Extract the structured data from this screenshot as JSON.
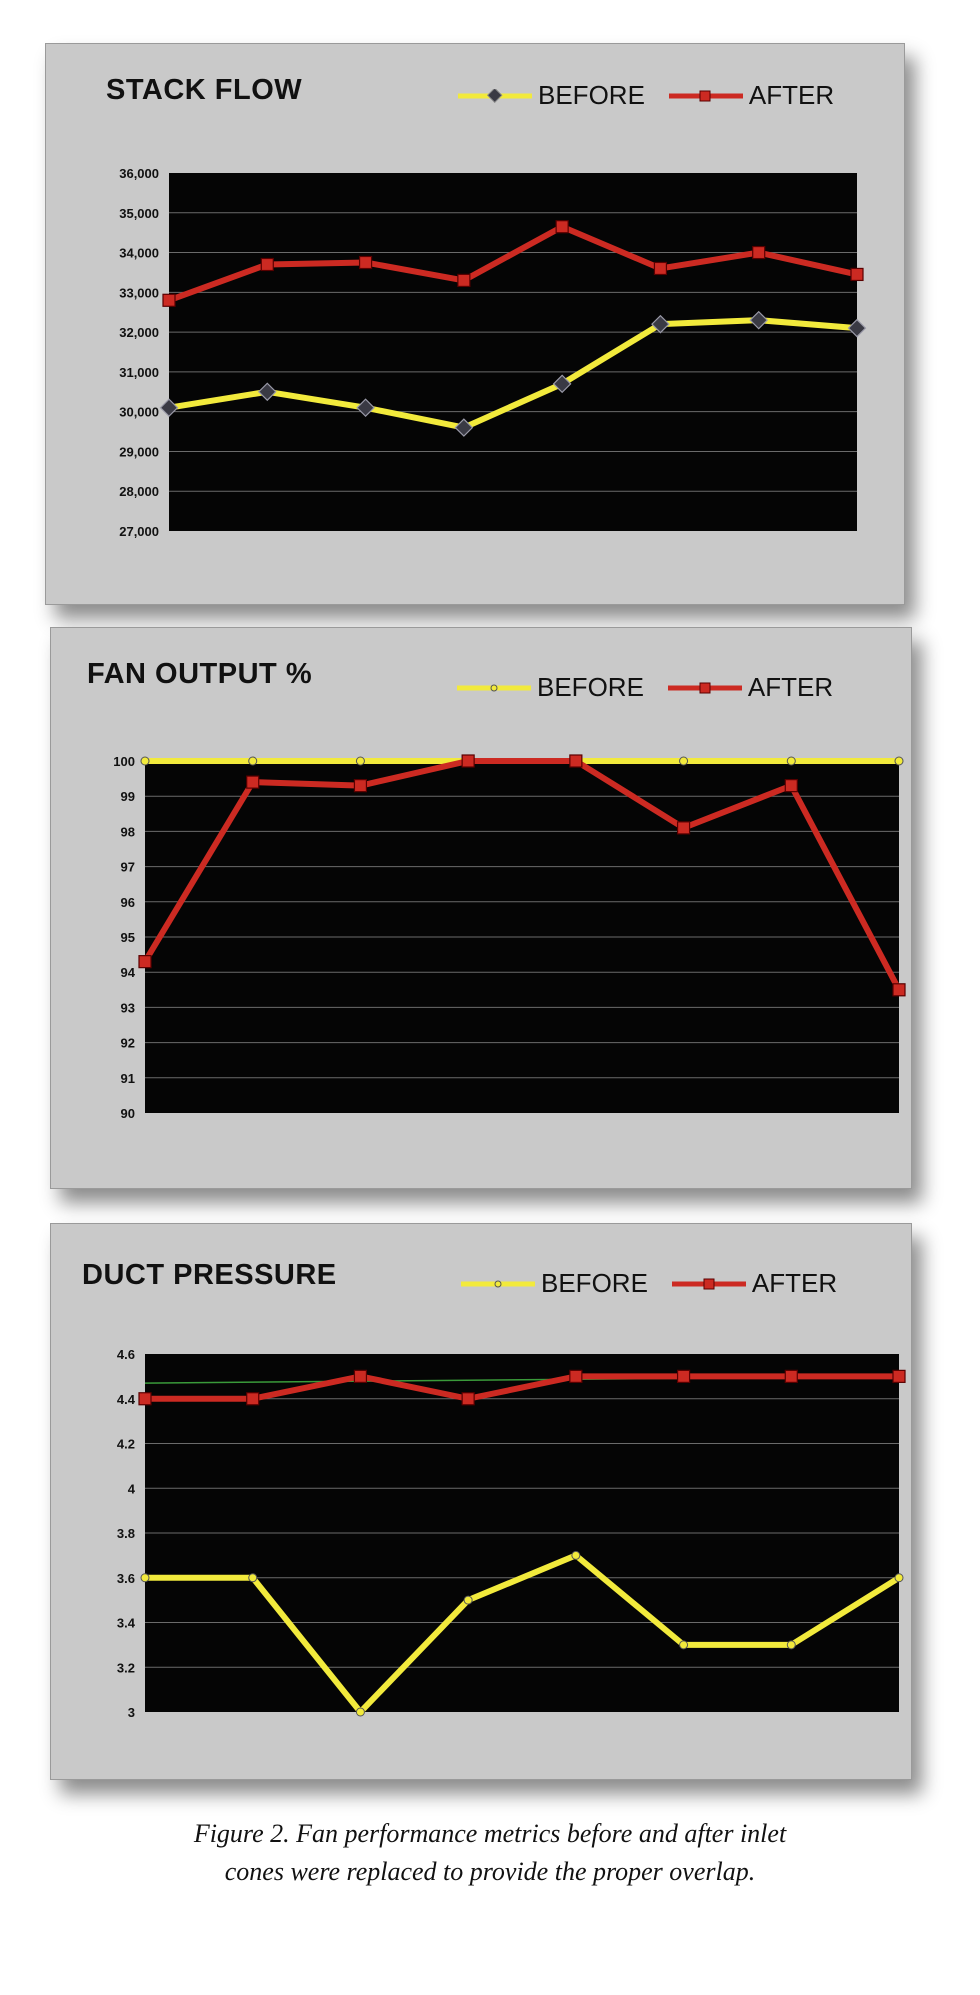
{
  "colors": {
    "panel_bg": "#c9c9c9",
    "plot_bg": "#050505",
    "gridline": "#6b6b6b",
    "before": "#f2ea3c",
    "after": "#cc2a22",
    "before_marker": "#3a3a44",
    "after_marker": "#cc2a22"
  },
  "legend": {
    "before_label": "BEFORE",
    "after_label": "AFTER"
  },
  "caption": {
    "line1": "Figure 2. Fan performance metrics before and after inlet",
    "line2": "cones were replaced to provide the proper overlap."
  },
  "chart_data": [
    {
      "type": "line",
      "title": "STACK FLOW",
      "ylim": [
        27000,
        36000
      ],
      "yticks": [
        27000,
        28000,
        29000,
        30000,
        31000,
        32000,
        33000,
        34000,
        35000,
        36000
      ],
      "ytick_labels": [
        "27,000",
        "28,000",
        "29,000",
        "30,000",
        "31,000",
        "32,000",
        "33,000",
        "34,000",
        "35,000",
        "36,000"
      ],
      "x": [
        1,
        2,
        3,
        4,
        5,
        6,
        7,
        8
      ],
      "grid": true,
      "legend_position": "top-right",
      "series": [
        {
          "name": "BEFORE",
          "values": [
            30100,
            30500,
            30100,
            29600,
            30700,
            32200,
            32300,
            32100
          ]
        },
        {
          "name": "AFTER",
          "values": [
            32800,
            33700,
            33750,
            33300,
            34650,
            33600,
            34000,
            33450
          ]
        }
      ]
    },
    {
      "type": "line",
      "title": "FAN OUTPUT %",
      "ylim": [
        90,
        100
      ],
      "yticks": [
        90,
        91,
        92,
        93,
        94,
        95,
        96,
        97,
        98,
        99,
        100
      ],
      "ytick_labels": [
        "90",
        "91",
        "92",
        "93",
        "94",
        "95",
        "96",
        "97",
        "98",
        "99",
        "100"
      ],
      "x": [
        1,
        2,
        3,
        4,
        5,
        6,
        7,
        8
      ],
      "grid": true,
      "legend_position": "top-right",
      "series": [
        {
          "name": "BEFORE",
          "values": [
            100,
            100,
            100,
            100,
            100,
            100,
            100,
            100
          ]
        },
        {
          "name": "AFTER",
          "values": [
            94.3,
            99.4,
            99.3,
            100,
            100,
            98.1,
            99.3,
            93.5
          ]
        }
      ]
    },
    {
      "type": "line",
      "title": "DUCT PRESSURE",
      "ylim": [
        3,
        4.6
      ],
      "yticks": [
        3,
        3.2,
        3.4,
        3.6,
        3.8,
        4,
        4.2,
        4.4,
        4.6
      ],
      "ytick_labels": [
        "3",
        "3.2",
        "3.4",
        "3.6",
        "3.8",
        "4",
        "4.2",
        "4.4",
        "4.6"
      ],
      "x": [
        1,
        2,
        3,
        4,
        5,
        6,
        7,
        8
      ],
      "grid": true,
      "legend_position": "top-right",
      "series": [
        {
          "name": "BEFORE",
          "values": [
            3.6,
            3.6,
            3.0,
            3.5,
            3.7,
            3.3,
            3.3,
            3.6
          ]
        },
        {
          "name": "AFTER",
          "values": [
            4.4,
            4.4,
            4.5,
            4.4,
            4.5,
            4.5,
            4.5,
            4.5
          ]
        }
      ],
      "trendline": {
        "color": "#3a9a3a",
        "values": [
          4.47,
          4.5
        ]
      }
    }
  ]
}
